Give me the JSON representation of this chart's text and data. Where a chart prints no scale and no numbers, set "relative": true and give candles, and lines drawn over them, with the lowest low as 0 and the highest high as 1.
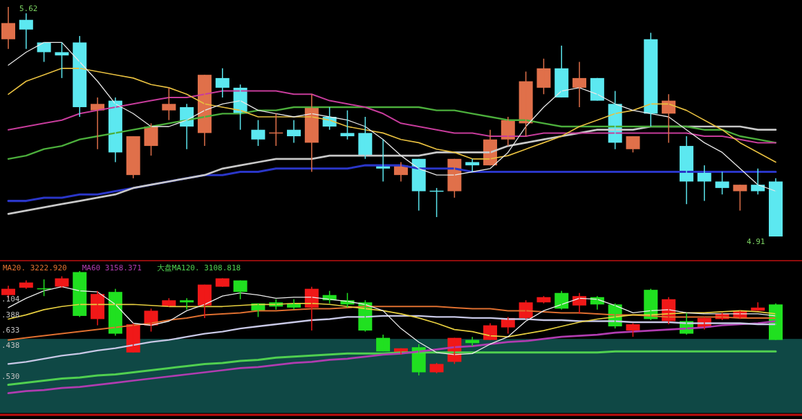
{
  "chart_data": [
    {
      "type": "candlestick",
      "categories": [
        null,
        null,
        null,
        null,
        null,
        null,
        null,
        null,
        null,
        null,
        null,
        null,
        null,
        null,
        null,
        null,
        null,
        null,
        null,
        null,
        null,
        null,
        null,
        null,
        null,
        null,
        null,
        null,
        null,
        null,
        null,
        null,
        null,
        null,
        null,
        null,
        null,
        null,
        null,
        null,
        null,
        null,
        null,
        null
      ],
      "ohlc": [
        [
          5.52,
          5.62,
          5.49,
          5.57
        ],
        [
          5.58,
          5.6,
          5.49,
          5.55
        ],
        [
          5.51,
          5.51,
          5.45,
          5.48
        ],
        [
          5.48,
          5.51,
          5.4,
          5.47
        ],
        [
          5.51,
          5.53,
          5.28,
          5.31
        ],
        [
          5.3,
          5.34,
          5.18,
          5.32
        ],
        [
          5.33,
          5.34,
          5.14,
          5.17
        ],
        [
          5.1,
          5.22,
          5.09,
          5.22
        ],
        [
          5.19,
          5.26,
          5.16,
          5.25
        ],
        [
          5.3,
          5.37,
          5.27,
          5.32
        ],
        [
          5.31,
          5.32,
          5.18,
          5.25
        ],
        [
          5.23,
          5.41,
          5.19,
          5.41
        ],
        [
          5.4,
          5.43,
          5.34,
          5.37
        ],
        [
          5.37,
          5.38,
          5.24,
          5.29
        ],
        [
          5.24,
          5.27,
          5.19,
          5.21
        ],
        [
          5.23,
          5.29,
          5.19,
          5.23
        ],
        [
          5.24,
          5.27,
          5.2,
          5.22
        ],
        [
          5.2,
          5.35,
          5.11,
          5.31
        ],
        [
          5.28,
          5.31,
          5.24,
          5.25
        ],
        [
          5.23,
          5.3,
          5.21,
          5.22
        ],
        [
          5.23,
          5.28,
          5.15,
          5.16
        ],
        [
          5.13,
          5.21,
          5.08,
          5.12
        ],
        [
          5.1,
          5.14,
          5.08,
          5.13
        ],
        [
          5.15,
          5.15,
          4.99,
          5.05
        ],
        [
          5.05,
          5.06,
          4.97,
          5.05
        ],
        [
          5.05,
          5.15,
          5.03,
          5.15
        ],
        [
          5.14,
          5.15,
          5.11,
          5.13
        ],
        [
          5.13,
          5.24,
          5.13,
          5.21
        ],
        [
          5.21,
          5.28,
          5.19,
          5.27
        ],
        [
          5.26,
          5.42,
          5.22,
          5.39
        ],
        [
          5.37,
          5.46,
          5.35,
          5.43
        ],
        [
          5.43,
          5.5,
          5.34,
          5.34
        ],
        [
          5.37,
          5.45,
          5.31,
          5.4
        ],
        [
          5.4,
          5.4,
          5.33,
          5.33
        ],
        [
          5.32,
          5.36,
          5.18,
          5.2
        ],
        [
          5.18,
          5.22,
          5.17,
          5.22
        ],
        [
          5.52,
          5.54,
          5.25,
          5.29
        ],
        [
          5.29,
          5.35,
          5.2,
          5.33
        ],
        [
          5.19,
          5.22,
          5.01,
          5.08
        ],
        [
          5.11,
          5.13,
          5.02,
          5.08
        ],
        [
          5.08,
          5.11,
          5.04,
          5.06
        ],
        [
          5.05,
          5.07,
          4.99,
          5.07
        ],
        [
          5.07,
          5.12,
          5.04,
          5.05
        ],
        [
          5.08,
          5.09,
          4.91,
          4.91
        ]
      ],
      "colors": [
        "#e0704a",
        "#5ce8f0",
        "#5ce8f0",
        "#5ce8f0",
        "#5ce8f0",
        "#e0704a",
        "#5ce8f0",
        "#e0704a",
        "#e0704a",
        "#e0704a",
        "#5ce8f0",
        "#e0704a",
        "#5ce8f0",
        "#5ce8f0",
        "#5ce8f0",
        "#e0704a",
        "#5ce8f0",
        "#e0704a",
        "#5ce8f0",
        "#5ce8f0",
        "#5ce8f0",
        "#5ce8f0",
        "#e0704a",
        "#5ce8f0",
        "#5ce8f0",
        "#e0704a",
        "#5ce8f0",
        "#e0704a",
        "#e0704a",
        "#e0704a",
        "#e0704a",
        "#5ce8f0",
        "#e0704a",
        "#5ce8f0",
        "#5ce8f0",
        "#e0704a",
        "#5ce8f0",
        "#e0704a",
        "#5ce8f0",
        "#5ce8f0",
        "#5ce8f0",
        "#e0704a",
        "#5ce8f0",
        "#5ce8f0"
      ],
      "series": [
        {
          "type": "line",
          "color": "#2a36c8",
          "values": [
            5.02,
            5.02,
            5.03,
            5.03,
            5.04,
            5.04,
            5.05,
            5.06,
            5.07,
            5.08,
            5.09,
            5.1,
            5.1,
            5.11,
            5.11,
            5.12,
            5.12,
            5.12,
            5.12,
            5.12,
            5.13,
            5.13,
            5.13,
            5.12,
            5.12,
            5.12,
            5.11,
            5.11,
            5.11,
            5.11,
            5.11,
            5.11,
            5.11,
            5.11,
            5.11,
            5.11,
            5.11,
            5.11,
            5.11,
            5.11,
            5.11,
            5.11,
            5.11,
            5.11
          ]
        },
        {
          "type": "line",
          "color": "#c8c8c8",
          "values": [
            4.98,
            4.99,
            5.0,
            5.01,
            5.02,
            5.03,
            5.04,
            5.06,
            5.07,
            5.08,
            5.09,
            5.1,
            5.12,
            5.13,
            5.14,
            5.15,
            5.15,
            5.15,
            5.16,
            5.16,
            5.16,
            5.16,
            5.16,
            5.16,
            5.17,
            5.17,
            5.17,
            5.17,
            5.19,
            5.2,
            5.21,
            5.22,
            5.23,
            5.24,
            5.24,
            5.24,
            5.25,
            5.25,
            5.25,
            5.25,
            5.25,
            5.25,
            5.24,
            5.24
          ]
        },
        {
          "type": "line",
          "color": "#4caf3c",
          "values": [
            5.15,
            5.16,
            5.18,
            5.19,
            5.21,
            5.22,
            5.23,
            5.24,
            5.25,
            5.26,
            5.27,
            5.28,
            5.29,
            5.29,
            5.3,
            5.3,
            5.31,
            5.31,
            5.31,
            5.31,
            5.31,
            5.31,
            5.31,
            5.31,
            5.3,
            5.3,
            5.29,
            5.28,
            5.27,
            5.27,
            5.26,
            5.25,
            5.25,
            5.25,
            5.25,
            5.25,
            5.25,
            5.25,
            5.25,
            5.24,
            5.24,
            5.22,
            5.21,
            5.2
          ]
        },
        {
          "type": "line",
          "color": "#c83c9c",
          "values": [
            5.24,
            5.25,
            5.26,
            5.27,
            5.29,
            5.3,
            5.31,
            5.32,
            5.33,
            5.34,
            5.34,
            5.35,
            5.36,
            5.36,
            5.36,
            5.36,
            5.35,
            5.35,
            5.33,
            5.32,
            5.31,
            5.29,
            5.26,
            5.25,
            5.24,
            5.23,
            5.23,
            5.22,
            5.22,
            5.22,
            5.23,
            5.23,
            5.23,
            5.23,
            5.23,
            5.23,
            5.23,
            5.23,
            5.23,
            5.22,
            5.22,
            5.21,
            5.2,
            5.2
          ]
        },
        {
          "type": "line",
          "color": "#e8c040",
          "values": [
            5.35,
            5.39,
            5.41,
            5.43,
            5.43,
            5.42,
            5.41,
            5.4,
            5.38,
            5.37,
            5.35,
            5.32,
            5.31,
            5.3,
            5.28,
            5.28,
            5.28,
            5.28,
            5.27,
            5.25,
            5.24,
            5.23,
            5.21,
            5.2,
            5.18,
            5.17,
            5.15,
            5.15,
            5.16,
            5.18,
            5.2,
            5.22,
            5.25,
            5.27,
            5.29,
            5.3,
            5.32,
            5.32,
            5.3,
            5.27,
            5.24,
            5.2,
            5.17,
            5.14
          ]
        },
        {
          "type": "line",
          "color": "#e8e8e8",
          "values": [
            5.44,
            5.48,
            5.51,
            5.51,
            5.45,
            5.39,
            5.32,
            5.29,
            5.25,
            5.25,
            5.27,
            5.3,
            5.32,
            5.33,
            5.3,
            5.29,
            5.28,
            5.29,
            5.28,
            5.27,
            5.25,
            5.21,
            5.16,
            5.12,
            5.1,
            5.1,
            5.11,
            5.12,
            5.17,
            5.25,
            5.31,
            5.36,
            5.37,
            5.35,
            5.32,
            5.3,
            5.29,
            5.28,
            5.24,
            5.2,
            5.17,
            5.12,
            5.07,
            5.05
          ]
        }
      ],
      "annotations": [
        "5.62",
        "4.91"
      ]
    },
    {
      "type": "candlestick",
      "relative": true,
      "categories": [
        null,
        null,
        null,
        null,
        null,
        null,
        null,
        null,
        null,
        null,
        null,
        null,
        null,
        null,
        null,
        null,
        null,
        null,
        null,
        null,
        null,
        null,
        null,
        null,
        null,
        null,
        null,
        null,
        null,
        null,
        null,
        null,
        null,
        null,
        null,
        null,
        null,
        null,
        null,
        null,
        null,
        null,
        null,
        null
      ],
      "ohlc": [
        [
          0.77,
          0.86,
          0.74,
          0.83
        ],
        [
          0.84,
          0.91,
          0.83,
          0.89
        ],
        [
          0.83,
          0.92,
          0.76,
          0.83
        ],
        [
          0.85,
          0.95,
          0.84,
          0.93
        ],
        [
          0.99,
          1.0,
          0.56,
          0.57
        ],
        [
          0.54,
          0.81,
          0.48,
          0.78
        ],
        [
          0.8,
          0.83,
          0.38,
          0.4
        ],
        [
          0.22,
          0.5,
          0.22,
          0.49
        ],
        [
          0.48,
          0.64,
          0.42,
          0.62
        ],
        [
          0.66,
          0.74,
          0.66,
          0.72
        ],
        [
          0.72,
          0.74,
          0.63,
          0.7
        ],
        [
          0.67,
          0.87,
          0.55,
          0.87
        ],
        [
          0.85,
          0.93,
          0.85,
          0.93
        ],
        [
          0.91,
          0.91,
          0.73,
          0.8
        ],
        [
          0.69,
          0.69,
          0.56,
          0.62
        ],
        [
          0.7,
          0.73,
          0.63,
          0.66
        ],
        [
          0.69,
          0.73,
          0.63,
          0.65
        ],
        [
          0.65,
          0.85,
          0.43,
          0.83
        ],
        [
          0.77,
          0.81,
          0.69,
          0.72
        ],
        [
          0.72,
          0.79,
          0.65,
          0.68
        ],
        [
          0.7,
          0.72,
          0.42,
          0.43
        ],
        [
          0.36,
          0.39,
          0.23,
          0.23
        ],
        [
          0.21,
          0.26,
          0.2,
          0.26
        ],
        [
          0.27,
          0.3,
          0.0,
          0.03
        ],
        [
          0.03,
          0.12,
          0.02,
          0.11
        ],
        [
          0.13,
          0.36,
          0.11,
          0.36
        ],
        [
          0.34,
          0.37,
          0.28,
          0.31
        ],
        [
          0.34,
          0.5,
          0.34,
          0.48
        ],
        [
          0.46,
          0.56,
          0.4,
          0.55
        ],
        [
          0.55,
          0.72,
          0.54,
          0.7
        ],
        [
          0.7,
          0.76,
          0.69,
          0.75
        ],
        [
          0.79,
          0.81,
          0.63,
          0.64
        ],
        [
          0.67,
          0.79,
          0.59,
          0.76
        ],
        [
          0.75,
          0.76,
          0.63,
          0.68
        ],
        [
          0.68,
          0.69,
          0.45,
          0.47
        ],
        [
          0.43,
          0.5,
          0.37,
          0.49
        ],
        [
          0.82,
          0.83,
          0.53,
          0.54
        ],
        [
          0.52,
          0.75,
          0.49,
          0.73
        ],
        [
          0.52,
          0.6,
          0.39,
          0.4
        ],
        [
          0.46,
          0.56,
          0.44,
          0.55
        ],
        [
          0.54,
          0.6,
          0.53,
          0.59
        ],
        [
          0.55,
          0.62,
          0.54,
          0.62
        ],
        [
          0.62,
          0.7,
          0.62,
          0.65
        ],
        [
          0.68,
          0.69,
          0.34,
          0.34
        ]
      ],
      "colors": [
        "#f01818",
        "#f01818",
        "#20e020",
        "#f01818",
        "#20e020",
        "#f01818",
        "#20e020",
        "#f01818",
        "#f01818",
        "#f01818",
        "#20e020",
        "#f01818",
        "#f01818",
        "#20e020",
        "#20e020",
        "#20e020",
        "#20e020",
        "#f01818",
        "#20e020",
        "#20e020",
        "#20e020",
        "#20e020",
        "#f01818",
        "#20e020",
        "#f01818",
        "#f01818",
        "#20e020",
        "#f01818",
        "#f01818",
        "#f01818",
        "#f01818",
        "#20e020",
        "#f01818",
        "#20e020",
        "#20e020",
        "#f01818",
        "#20e020",
        "#f01818",
        "#20e020",
        "#f01818",
        "#f01818",
        "#f01818",
        "#f01818",
        "#20e020"
      ],
      "bands": [
        {
          "axis": "y",
          "from": -0.36,
          "to": 0.35,
          "color": "#0f4845"
        }
      ],
      "series": [
        {
          "type": "line",
          "name": "大盘MA120. 3108.818",
          "color": "#50d050",
          "values": [
            -0.09,
            -0.07,
            -0.05,
            -0.03,
            -0.02,
            0.0,
            0.01,
            0.03,
            0.05,
            0.07,
            0.09,
            0.11,
            0.12,
            0.14,
            0.15,
            0.17,
            0.18,
            0.19,
            0.2,
            0.21,
            0.21,
            0.21,
            0.22,
            0.22,
            0.22,
            0.22,
            0.22,
            0.22,
            0.22,
            0.22,
            0.22,
            0.22,
            0.22,
            0.22,
            0.23,
            0.23,
            0.23,
            0.23,
            0.23,
            0.23,
            0.23,
            0.23,
            0.23,
            0.23
          ]
        },
        {
          "type": "line",
          "name": "MA60  3158.371",
          "color": "#b03cb0",
          "values": [
            -0.17,
            -0.15,
            -0.14,
            -0.12,
            -0.11,
            -0.09,
            -0.07,
            -0.05,
            -0.03,
            -0.01,
            0.01,
            0.03,
            0.05,
            0.07,
            0.08,
            0.1,
            0.12,
            0.13,
            0.15,
            0.16,
            0.18,
            0.2,
            0.21,
            0.23,
            0.25,
            0.27,
            0.28,
            0.3,
            0.32,
            0.33,
            0.35,
            0.37,
            0.38,
            0.39,
            0.41,
            0.42,
            0.43,
            0.44,
            0.45,
            0.46,
            0.48,
            0.49,
            0.5,
            0.52
          ]
        },
        {
          "type": "line",
          "color": "#c8c8e6",
          "values": [
            0.11,
            0.13,
            0.16,
            0.19,
            0.21,
            0.24,
            0.26,
            0.29,
            0.32,
            0.34,
            0.37,
            0.4,
            0.42,
            0.45,
            0.47,
            0.49,
            0.51,
            0.53,
            0.54,
            0.56,
            0.56,
            0.57,
            0.57,
            0.57,
            0.56,
            0.56,
            0.55,
            0.55,
            0.54,
            0.54,
            0.53,
            0.53,
            0.52,
            0.52,
            0.52,
            0.51,
            0.51,
            0.51,
            0.5,
            0.5,
            0.5,
            0.5,
            0.49,
            0.49
          ]
        },
        {
          "type": "line",
          "name": "MA20. 3222.920",
          "color": "#e07030",
          "values": [
            0.34,
            0.36,
            0.38,
            0.4,
            0.42,
            0.44,
            0.46,
            0.48,
            0.5,
            0.53,
            0.55,
            0.58,
            0.59,
            0.6,
            0.62,
            0.62,
            0.63,
            0.64,
            0.64,
            0.65,
            0.66,
            0.66,
            0.66,
            0.66,
            0.66,
            0.65,
            0.64,
            0.64,
            0.62,
            0.62,
            0.61,
            0.6,
            0.6,
            0.59,
            0.58,
            0.58,
            0.57,
            0.56,
            0.56,
            0.56,
            0.56,
            0.55,
            0.55,
            0.55
          ]
        },
        {
          "type": "line",
          "color": "#e8d040",
          "values": [
            0.54,
            0.58,
            0.63,
            0.66,
            0.68,
            0.68,
            0.68,
            0.68,
            0.67,
            0.66,
            0.66,
            0.66,
            0.66,
            0.67,
            0.68,
            0.68,
            0.69,
            0.69,
            0.68,
            0.66,
            0.64,
            0.62,
            0.59,
            0.55,
            0.5,
            0.44,
            0.42,
            0.38,
            0.37,
            0.4,
            0.43,
            0.47,
            0.51,
            0.54,
            0.56,
            0.58,
            0.58,
            0.59,
            0.6,
            0.6,
            0.61,
            0.62,
            0.61,
            0.59
          ]
        },
        {
          "type": "line",
          "color": "#eeeeee",
          "values": [
            0.65,
            0.74,
            0.81,
            0.85,
            0.81,
            0.8,
            0.68,
            0.5,
            0.48,
            0.52,
            0.62,
            0.68,
            0.76,
            0.79,
            0.77,
            0.74,
            0.75,
            0.75,
            0.73,
            0.71,
            0.68,
            0.62,
            0.45,
            0.32,
            0.22,
            0.2,
            0.21,
            0.3,
            0.37,
            0.52,
            0.62,
            0.68,
            0.74,
            0.73,
            0.67,
            0.6,
            0.62,
            0.63,
            0.6,
            0.59,
            0.59,
            0.59,
            0.59,
            0.57
          ]
        }
      ],
      "legend": "top left",
      "annotations": [
        ".104",
        ".388",
        ".633",
        ".438",
        ".530"
      ]
    }
  ]
}
